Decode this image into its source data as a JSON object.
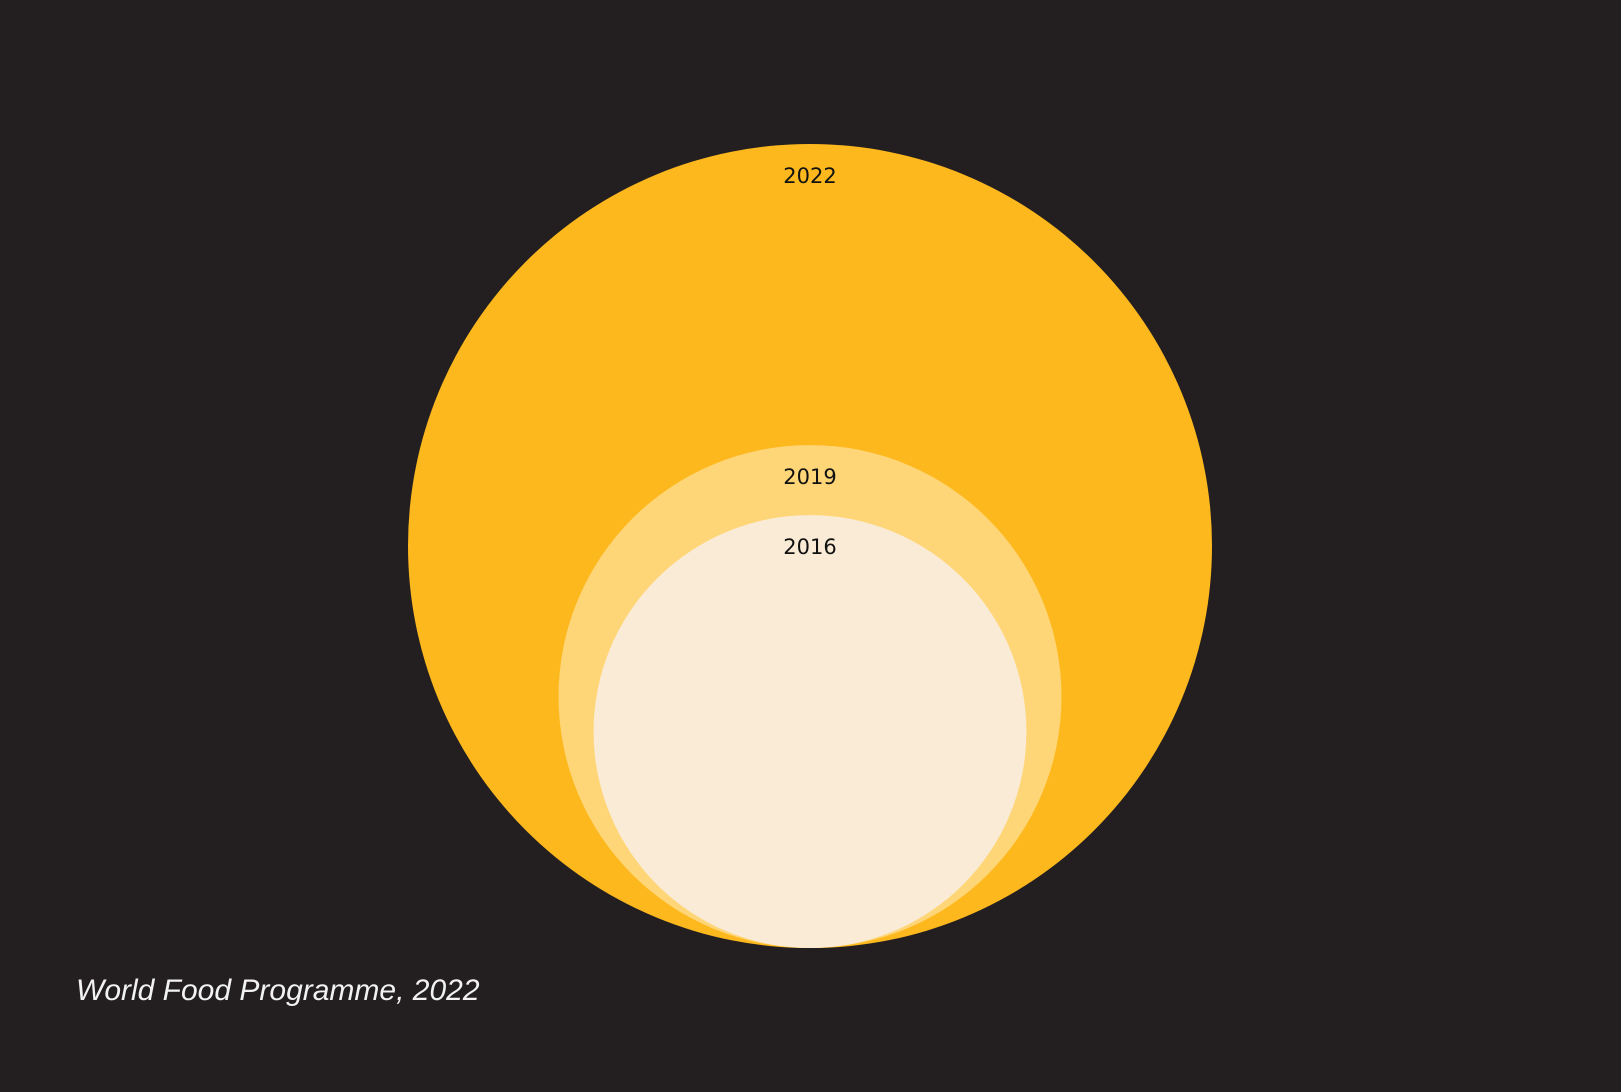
{
  "chart_data": {
    "type": "nested-bubble",
    "categories": [
      "2022",
      "2019",
      "2016"
    ],
    "values": [
      345,
      135,
      100
    ],
    "colors": [
      "#fdb81e",
      "#ffd677",
      "#f9ebd5"
    ],
    "source": "World Food Programme, 2022"
  }
}
